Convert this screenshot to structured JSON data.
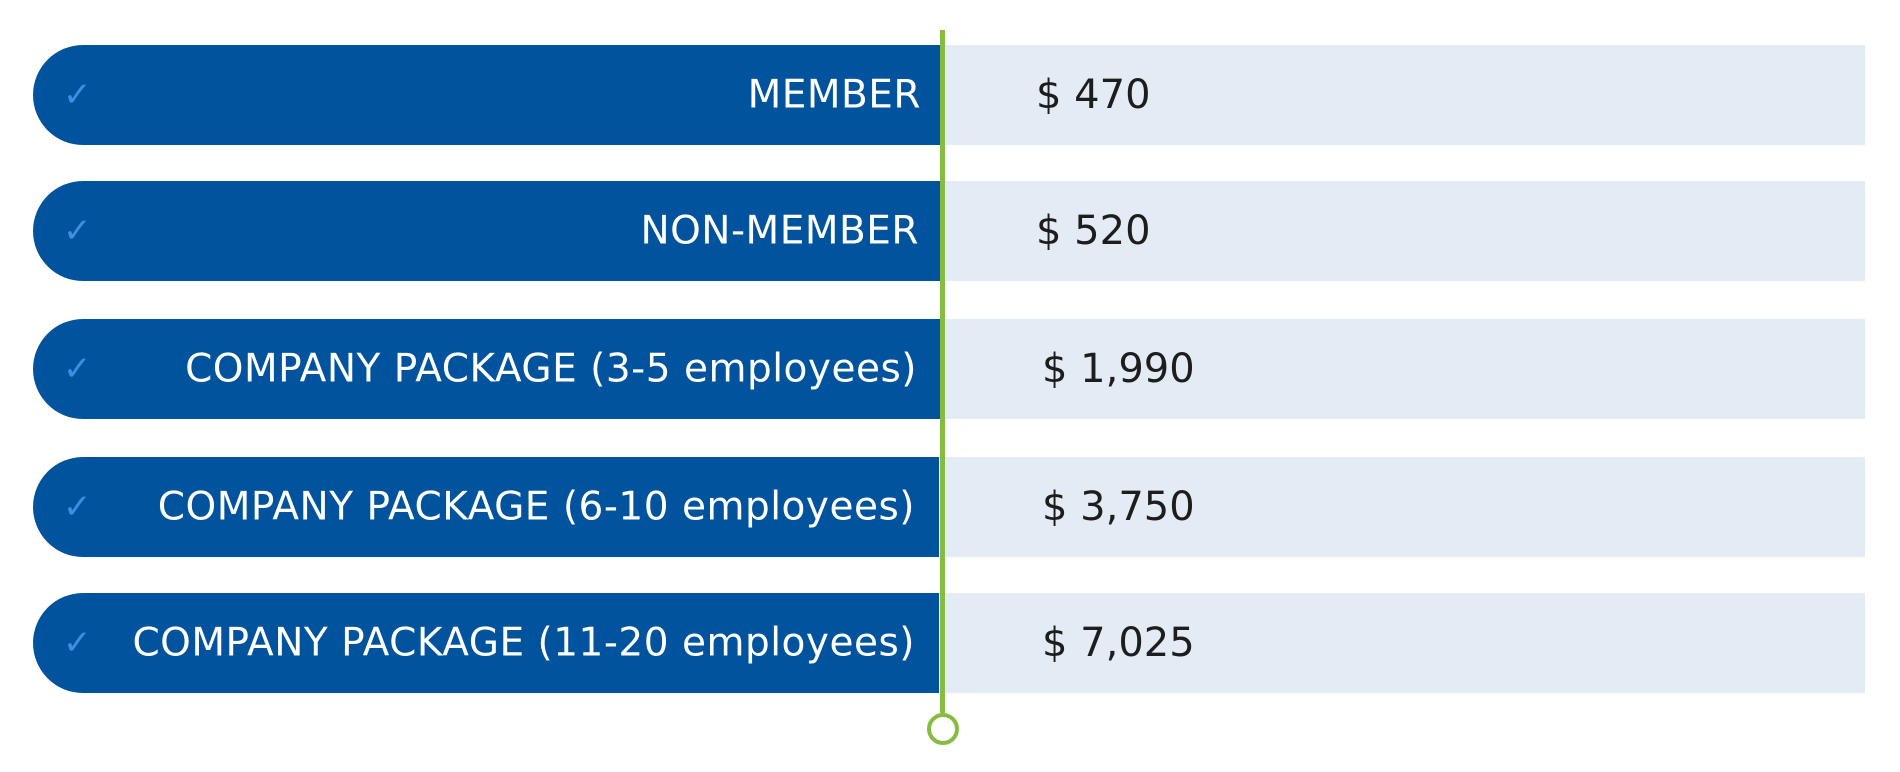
{
  "pricing": {
    "rows": [
      {
        "label": "MEMBER",
        "price": "$ 470"
      },
      {
        "label": "NON-MEMBER",
        "price": "$ 520"
      },
      {
        "label": "COMPANY PACKAGE (3-5 employees)",
        "price": "$ 1,990"
      },
      {
        "label": "COMPANY PACKAGE (6-10 employees)",
        "price": "$ 3,750"
      },
      {
        "label": "COMPANY PACKAGE (11-20 employees)",
        "price": "$ 7,025"
      }
    ],
    "check_glyph": "✓",
    "colors": {
      "label_bg": "#01539e",
      "price_bg": "#e3ebf4",
      "accent_line": "#86bc42",
      "check": "#3b8fe0"
    },
    "icons": {
      "row_marker": "checkmark-icon",
      "timeline_end": "circle-node-icon"
    }
  }
}
